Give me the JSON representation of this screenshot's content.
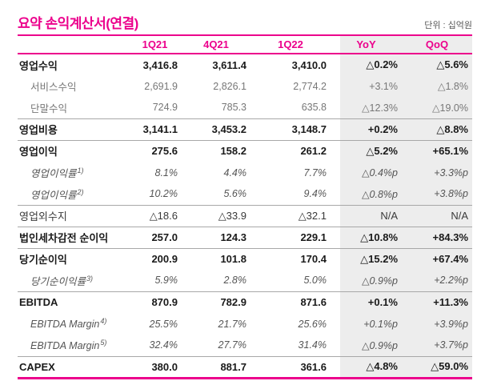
{
  "title": "요약 손익계산서(연결)",
  "unit_label": "단위 : 십억원",
  "colors": {
    "accent_pink": "#EC008C",
    "highlight_band": "#EDEDED",
    "separator_gray": "#A8A8A8",
    "main_text": "#1A1A1A",
    "sub_text": "#777777"
  },
  "table": {
    "columns": [
      "",
      "1Q21",
      "4Q21",
      "1Q22",
      "YoY",
      "QoQ"
    ],
    "rows": [
      {
        "label": "영업수익",
        "style": "main",
        "values": [
          "3,416.8",
          "3,611.4",
          "3,410.0",
          "△0.2%",
          "△5.6%"
        ],
        "separator_below": false
      },
      {
        "label": "서비스수익",
        "style": "sub",
        "values": [
          "2,691.9",
          "2,826.1",
          "2,774.2",
          "+3.1%",
          "△1.8%"
        ],
        "separator_below": false
      },
      {
        "label": "단말수익",
        "style": "sub",
        "values": [
          "724.9",
          "785.3",
          "635.8",
          "△12.3%",
          "△19.0%"
        ],
        "separator_below": true
      },
      {
        "label": "영업비용",
        "style": "main",
        "values": [
          "3,141.1",
          "3,453.2",
          "3,148.7",
          "+0.2%",
          "△8.8%"
        ],
        "separator_below": true
      },
      {
        "label": "영업이익",
        "style": "main",
        "values": [
          "275.6",
          "158.2",
          "261.2",
          "△5.2%",
          "+65.1%"
        ],
        "separator_below": false
      },
      {
        "label": "영업이익률",
        "sup": "1)",
        "style": "italic",
        "values": [
          "8.1%",
          "4.4%",
          "7.7%",
          "△0.4%p",
          "+3.3%p"
        ],
        "separator_below": false
      },
      {
        "label": "영업이익률",
        "sup": "2)",
        "style": "italic",
        "values": [
          "10.2%",
          "5.6%",
          "9.4%",
          "△0.8%p",
          "+3.8%p"
        ],
        "separator_below": true
      },
      {
        "label": "영업외수지",
        "style": "plain",
        "values": [
          "△18.6",
          "△33.9",
          "△32.1",
          "N/A",
          "N/A"
        ],
        "separator_below": true
      },
      {
        "label": "법인세차감전 순이익",
        "style": "main",
        "values": [
          "257.0",
          "124.3",
          "229.1",
          "△10.8%",
          "+84.3%"
        ],
        "separator_below": true
      },
      {
        "label": "당기순이익",
        "style": "main",
        "values": [
          "200.9",
          "101.8",
          "170.4",
          "△15.2%",
          "+67.4%"
        ],
        "separator_below": false
      },
      {
        "label": "당기순이익률",
        "sup": "3)",
        "style": "italic",
        "values": [
          "5.9%",
          "2.8%",
          "5.0%",
          "△0.9%p",
          "+2.2%p"
        ],
        "separator_below": true
      },
      {
        "label": "EBITDA",
        "style": "main",
        "values": [
          "870.9",
          "782.9",
          "871.6",
          "+0.1%",
          "+11.3%"
        ],
        "separator_below": false
      },
      {
        "label": "EBITDA Margin",
        "sup": "4)",
        "style": "italic",
        "values": [
          "25.5%",
          "21.7%",
          "25.6%",
          "+0.1%p",
          "+3.9%p"
        ],
        "separator_below": false
      },
      {
        "label": "EBITDA Margin",
        "sup": "5)",
        "style": "italic",
        "values": [
          "32.4%",
          "27.7%",
          "31.4%",
          "△0.9%p",
          "+3.7%p"
        ],
        "separator_below": true
      },
      {
        "label": "CAPEX",
        "style": "main",
        "values": [
          "380.0",
          "881.7",
          "361.6",
          "△4.8%",
          "△59.0%"
        ],
        "separator_below": false
      }
    ]
  }
}
